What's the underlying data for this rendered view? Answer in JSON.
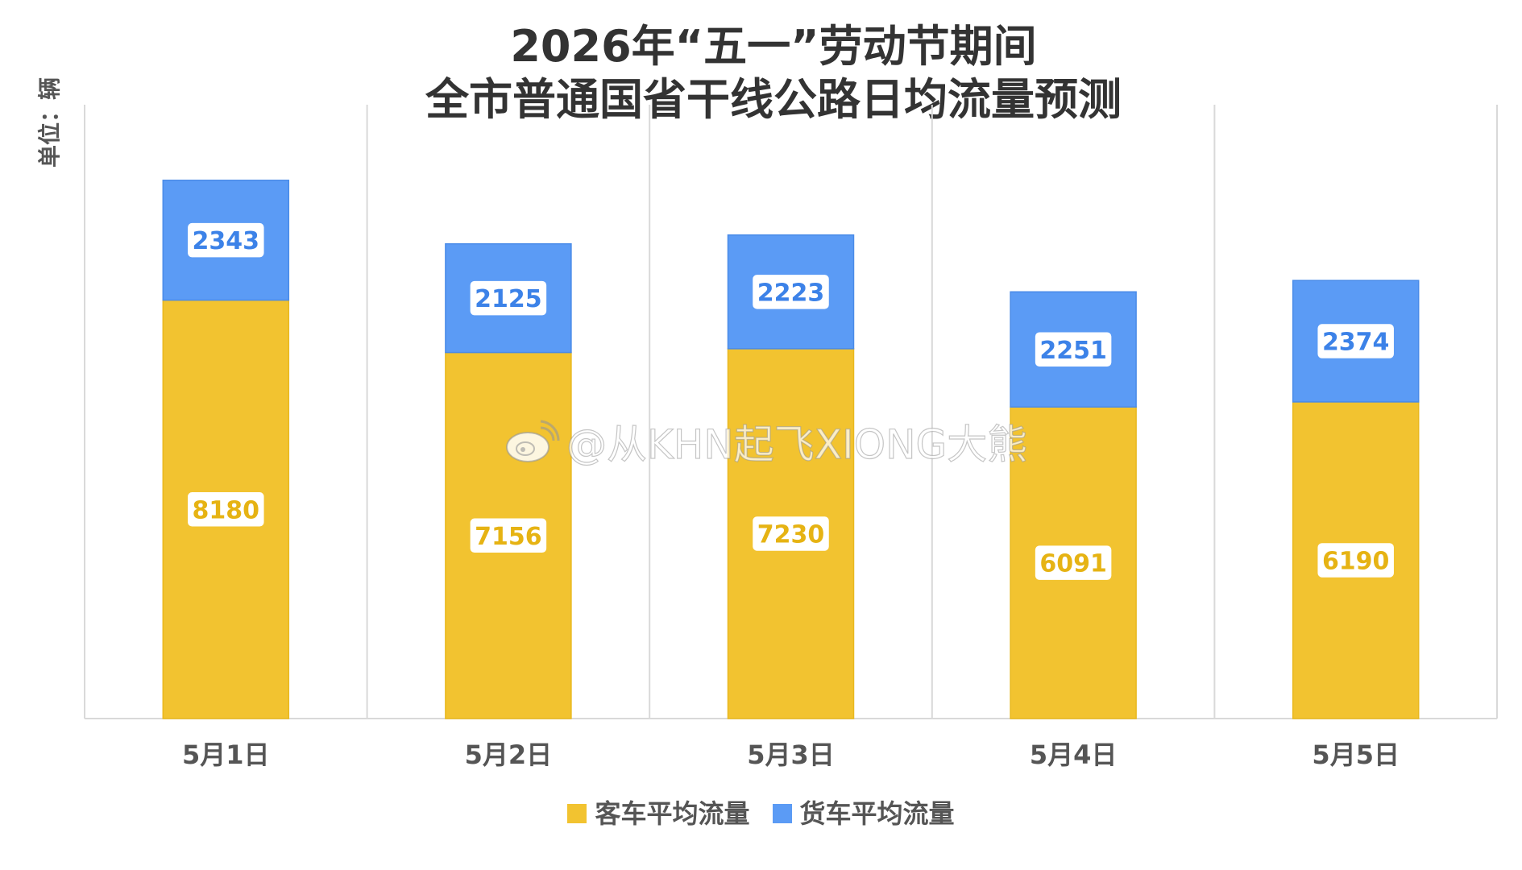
{
  "title_line1": "2026年“五一”劳动节期间",
  "title_line2": "全市普通国省干线公路日均流量预测",
  "unit_label": "单位：辆",
  "watermark": "@从KHN起飞XIONG大熊",
  "colors": {
    "passenger": "#F2C330",
    "freight": "#5B9BF5",
    "label_passenger_text": "#E6B313",
    "label_freight_text": "#3C82E8",
    "grid": "#D9D9D9",
    "axis_text": "#555555"
  },
  "chart_data": {
    "type": "bar",
    "stacked": true,
    "title": "2026年“五一”劳动节期间 全市普通国省干线公路日均流量预测",
    "ylabel": "单位：辆",
    "categories": [
      "5月1日",
      "5月2日",
      "5月3日",
      "5月4日",
      "5月5日"
    ],
    "series": [
      {
        "name": "客车平均流量",
        "values": [
          8180,
          7156,
          7230,
          6091,
          6190
        ]
      },
      {
        "name": "货车平均流量",
        "values": [
          2343,
          2125,
          2223,
          2251,
          2374
        ]
      }
    ],
    "ylim": [
      0,
      12000
    ],
    "grid": "vertical",
    "legend": "bottom"
  }
}
